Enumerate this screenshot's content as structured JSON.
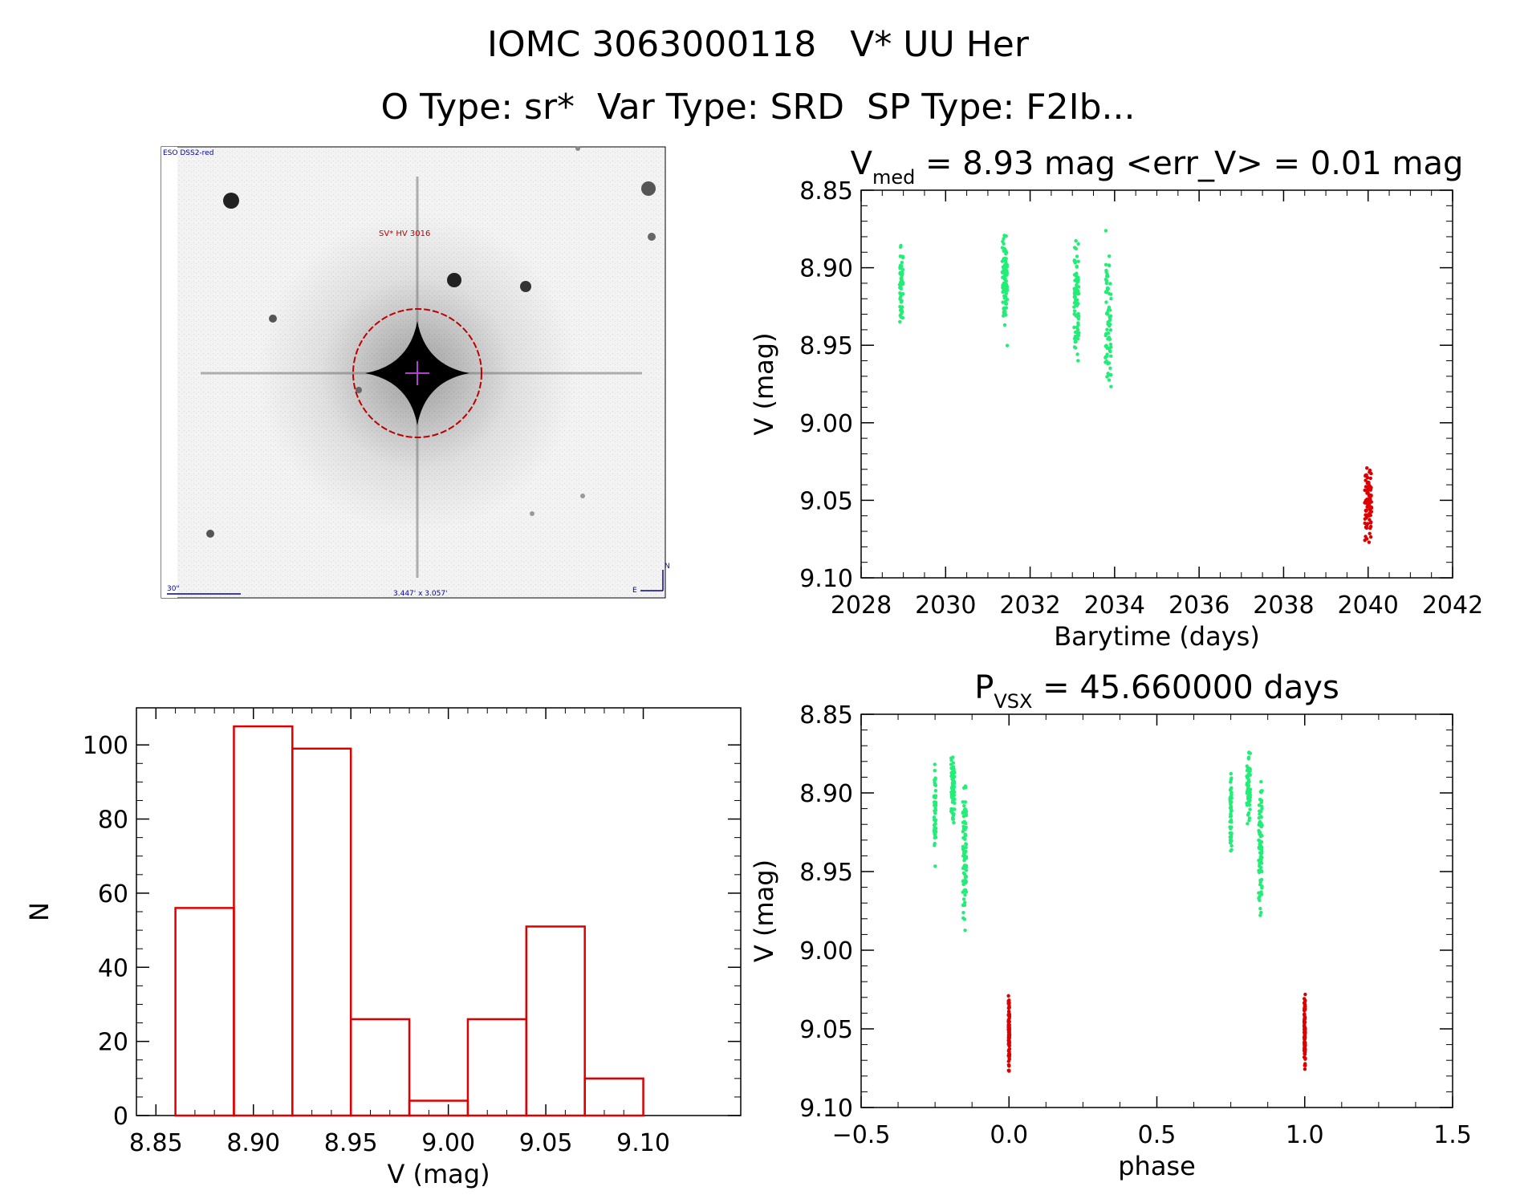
{
  "header": {
    "title": "IOMC 3063000118   V* UU Her",
    "subtitle": "O Type: sr*  Var Type: SRD  SP Type: F2Ib..."
  },
  "finder_image": {
    "survey_label": "ESO DSS2-red",
    "target_label": "SV* HV 3016",
    "scale_label": "30\"",
    "size_label": "3.447' x 3.057'",
    "north_label": "N",
    "east_label": "E"
  },
  "chart_data": [
    {
      "id": "lightcurve",
      "type": "scatter",
      "title_prefix": "V",
      "title_subscript": "med",
      "title_rest": " = 8.93 mag <err_V> = 0.01 mag",
      "xlabel": "Barytime (days)",
      "ylabel": "V (mag)",
      "xlim": [
        2028,
        2042
      ],
      "ylim": [
        8.85,
        9.1
      ],
      "y_inverted": true,
      "x_ticks": [
        2028,
        2030,
        2032,
        2034,
        2036,
        2038,
        2040,
        2042
      ],
      "x_tick_labels": [
        "2028",
        "2030",
        "2032",
        "2034",
        "2036",
        "2038",
        "2040",
        "2042"
      ],
      "y_ticks": [
        8.85,
        8.9,
        8.95,
        9.0,
        9.05,
        9.1
      ],
      "y_tick_labels": [
        "8.85",
        "8.90",
        "8.95",
        "9.00",
        "9.05",
        "9.10"
      ],
      "series": [
        {
          "color": "#22ee77",
          "clusters": [
            {
              "x": 2028.95,
              "dx": 0.08,
              "ymin": 8.865,
              "ymax": 8.955,
              "n": 60
            },
            {
              "x": 2031.4,
              "dx": 0.12,
              "ymin": 8.86,
              "ymax": 8.955,
              "n": 90
            },
            {
              "x": 2033.1,
              "dx": 0.12,
              "ymin": 8.865,
              "ymax": 8.98,
              "n": 75
            },
            {
              "x": 2033.85,
              "dx": 0.14,
              "ymin": 8.865,
              "ymax": 9.005,
              "n": 75
            }
          ]
        },
        {
          "color": "#dd0000",
          "clusters": [
            {
              "x": 2040.0,
              "dx": 0.16,
              "ymin": 9.015,
              "ymax": 9.09,
              "n": 95
            }
          ]
        }
      ]
    },
    {
      "id": "phased",
      "type": "scatter",
      "title_prefix": "P",
      "title_subscript": "VSX",
      "title_rest": " = 45.660000 days",
      "xlabel": "phase",
      "ylabel": "V (mag)",
      "xlim": [
        -0.5,
        1.5
      ],
      "ylim": [
        8.85,
        9.1
      ],
      "y_inverted": true,
      "x_ticks": [
        -0.5,
        0.0,
        0.5,
        1.0,
        1.5
      ],
      "x_tick_labels": [
        "−0.5",
        "0.0",
        "0.5",
        "1.0",
        "1.5"
      ],
      "y_ticks": [
        8.85,
        8.9,
        8.95,
        9.0,
        9.05,
        9.1
      ],
      "y_tick_labels": [
        "8.85",
        "8.90",
        "8.95",
        "9.00",
        "9.05",
        "9.10"
      ],
      "series": [
        {
          "color": "#22ee77",
          "clusters": [
            {
              "x": -0.25,
              "dx": 0.006,
              "ymin": 8.865,
              "ymax": 8.955,
              "n": 50
            },
            {
              "x": -0.19,
              "dx": 0.012,
              "ymin": 8.86,
              "ymax": 8.935,
              "n": 70
            },
            {
              "x": -0.15,
              "dx": 0.012,
              "ymin": 8.865,
              "ymax": 9.005,
              "n": 90
            },
            {
              "x": 0.75,
              "dx": 0.006,
              "ymin": 8.865,
              "ymax": 8.955,
              "n": 50
            },
            {
              "x": 0.81,
              "dx": 0.012,
              "ymin": 8.86,
              "ymax": 8.935,
              "n": 70
            },
            {
              "x": 0.85,
              "dx": 0.012,
              "ymin": 8.865,
              "ymax": 9.005,
              "n": 90
            }
          ]
        },
        {
          "color": "#dd0000",
          "clusters": [
            {
              "x": 0.0,
              "dx": 0.004,
              "ymin": 9.015,
              "ymax": 9.09,
              "n": 95
            },
            {
              "x": 1.0,
              "dx": 0.004,
              "ymin": 9.015,
              "ymax": 9.09,
              "n": 95
            }
          ]
        }
      ]
    },
    {
      "id": "histogram",
      "type": "bar",
      "title": "",
      "xlabel": "V (mag)",
      "ylabel": "N",
      "xlim": [
        8.84,
        9.15
      ],
      "ylim": [
        0,
        110
      ],
      "x_ticks": [
        8.85,
        8.9,
        8.95,
        9.0,
        9.05,
        9.1
      ],
      "x_tick_labels": [
        "8.85",
        "8.90",
        "8.95",
        "9.00",
        "9.05",
        "9.10"
      ],
      "y_ticks": [
        0,
        20,
        40,
        60,
        80,
        100
      ],
      "y_tick_labels": [
        "0",
        "20",
        "40",
        "60",
        "80",
        "100"
      ],
      "bin_edges": [
        8.86,
        8.89,
        8.92,
        8.95,
        8.98,
        9.01,
        9.04,
        9.07,
        9.1
      ],
      "values": [
        56,
        105,
        99,
        26,
        4,
        26,
        51,
        10
      ],
      "color": "#dd0000"
    }
  ]
}
